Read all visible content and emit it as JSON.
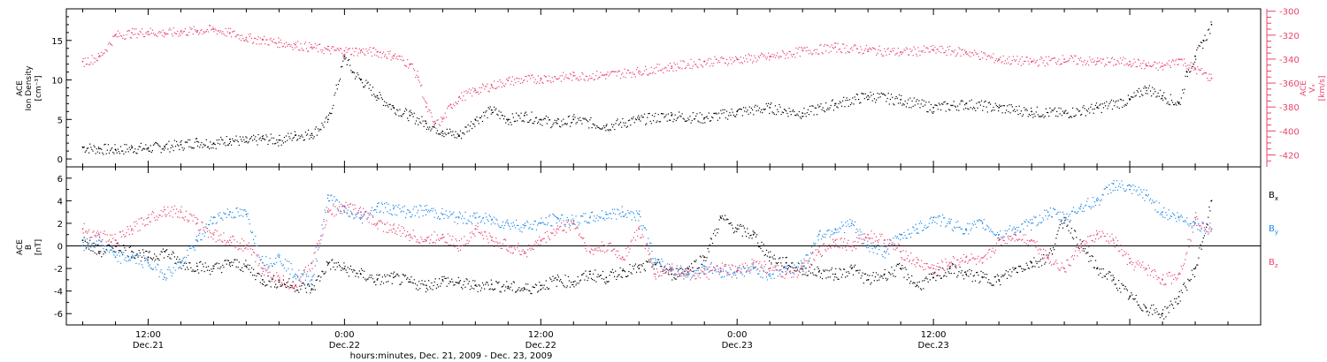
{
  "chart_data": [
    {
      "type": "scatter",
      "panel": "top",
      "ylabel_lines": [
        "ACE",
        "Ion Density",
        "[cm⁻³]"
      ],
      "y2label_lines": [
        "ACE",
        "Vₓ",
        "[km/s]"
      ],
      "xlim": [
        7,
        80
      ],
      "ylim": [
        -1,
        19
      ],
      "y2lim": [
        -430,
        -298
      ],
      "yticks": [
        0,
        5,
        10,
        15
      ],
      "y2ticks": [
        -300,
        -320,
        -340,
        -360,
        -380,
        -400,
        -420
      ],
      "colors": {
        "density": "#000000",
        "velocity": "#e8456e"
      },
      "series": [
        {
          "name": "",
          "axis": "left",
          "color": "#000000",
          "x": [
            8,
            9,
            10,
            11,
            12,
            13,
            14,
            15,
            16,
            17,
            18,
            19,
            20,
            21,
            22,
            23,
            24,
            24.5,
            25,
            26,
            27,
            28,
            29,
            30,
            31,
            32,
            33,
            34,
            35,
            36,
            37,
            38,
            40,
            42,
            44,
            46,
            48,
            50,
            52,
            54,
            56,
            58,
            60,
            62,
            64,
            66,
            68,
            70,
            72,
            73,
            74,
            75,
            75.5,
            76,
            76.5,
            77
          ],
          "y": [
            1.5,
            1.3,
            1.2,
            1.4,
            1.4,
            1.6,
            1.8,
            2.2,
            2.0,
            2.5,
            2.2,
            2.6,
            2.4,
            3.0,
            3.2,
            5.0,
            13.0,
            11.0,
            10.0,
            8.0,
            6.5,
            5.5,
            4.5,
            3.5,
            3.0,
            5.0,
            6.2,
            5.0,
            5.5,
            5.0,
            4.5,
            5.0,
            4.2,
            5.0,
            5.5,
            5.2,
            6.0,
            6.5,
            5.8,
            7.0,
            8.0,
            7.5,
            6.5,
            7.0,
            6.5,
            6.0,
            5.8,
            6.5,
            7.5,
            9.0,
            8.0,
            7.0,
            11.0,
            13.0,
            15.0,
            17.0
          ]
        },
        {
          "name": "",
          "axis": "right",
          "color": "#e8456e",
          "x": [
            8,
            9,
            10,
            11,
            12,
            13,
            14,
            15,
            16,
            17,
            18,
            19,
            20,
            21,
            22,
            23,
            24,
            25,
            26,
            27,
            28,
            28.5,
            29,
            29.5,
            30,
            30.5,
            31,
            32,
            33,
            34,
            36,
            38,
            40,
            42,
            44,
            46,
            48,
            50,
            52,
            54,
            56,
            58,
            60,
            62,
            64,
            66,
            68,
            70,
            72,
            73,
            74,
            75,
            76,
            77
          ],
          "y": [
            -342,
            -338,
            -320,
            -318,
            -317,
            -318,
            -317,
            -316,
            -315,
            -318,
            -322,
            -324,
            -326,
            -328,
            -330,
            -332,
            -333,
            -333,
            -334,
            -337,
            -344,
            -355,
            -380,
            -395,
            -390,
            -378,
            -372,
            -366,
            -362,
            -358,
            -356,
            -354,
            -353,
            -350,
            -346,
            -342,
            -340,
            -338,
            -333,
            -330,
            -332,
            -334,
            -332,
            -334,
            -340,
            -342,
            -340,
            -342,
            -342,
            -345,
            -346,
            -340,
            -348,
            -356
          ]
        }
      ]
    },
    {
      "type": "scatter",
      "panel": "bottom",
      "ylabel_lines": [
        "ACE",
        "B",
        "[nT]"
      ],
      "xlim": [
        7,
        80
      ],
      "ylim": [
        -7,
        7
      ],
      "yticks": [
        -6,
        -4,
        -2,
        0,
        2,
        4,
        6
      ],
      "xticks": [
        {
          "x": 12,
          "line1": "12:00",
          "line2": "Dec.21"
        },
        {
          "x": 24,
          "line1": "0:00",
          "line2": "Dec.22"
        },
        {
          "x": 36,
          "line1": "12:00",
          "line2": "Dec.22"
        },
        {
          "x": 48,
          "line1": "0:00",
          "line2": "Dec.23"
        },
        {
          "x": 60,
          "line1": "12:00",
          "line2": "Dec.23"
        }
      ],
      "xlabel": "hours:minutes, Dec. 21, 2009 - Dec. 23, 2009",
      "legend": [
        {
          "base": "B",
          "sub": "x",
          "color": "#000000"
        },
        {
          "base": "B",
          "sub": "y",
          "color": "#1e88e5"
        },
        {
          "base": "B",
          "sub": "z",
          "color": "#e8456e"
        }
      ],
      "series": [
        {
          "name": "Bx",
          "color": "#000000",
          "x": [
            8,
            9,
            10,
            11,
            12,
            13,
            14,
            15,
            16,
            17,
            18,
            19,
            20,
            21,
            22,
            23,
            24,
            25,
            26,
            27,
            28,
            29,
            30,
            31,
            32,
            33,
            34,
            35,
            36,
            37,
            38,
            39,
            40,
            41,
            42,
            43,
            44,
            45,
            46,
            47,
            48,
            49,
            50,
            51,
            52,
            53,
            54,
            55,
            56,
            57,
            58,
            59,
            60,
            61,
            62,
            63,
            64,
            65,
            66,
            67,
            68,
            69,
            70,
            71,
            72,
            73,
            74,
            75,
            76,
            77
          ],
          "y": [
            0.5,
            -0.5,
            0.0,
            -0.5,
            -1.0,
            -0.5,
            -1.5,
            -1.8,
            -2.0,
            -1.5,
            -1.8,
            -3.0,
            -3.2,
            -3.5,
            -3.8,
            -1.5,
            -2.0,
            -2.5,
            -3.0,
            -2.8,
            -3.2,
            -3.5,
            -3.0,
            -3.3,
            -3.5,
            -3.4,
            -3.6,
            -3.8,
            -3.5,
            -3.0,
            -3.2,
            -2.5,
            -2.8,
            -2.2,
            -2.0,
            -1.5,
            -2.5,
            -2.0,
            -1.0,
            2.5,
            1.5,
            1.0,
            -1.0,
            -1.5,
            -2.0,
            -2.3,
            -2.5,
            -2.0,
            -3.0,
            -2.5,
            -2.0,
            -3.5,
            -2.8,
            -2.0,
            -2.5,
            -2.8,
            -3.0,
            -2.0,
            -1.5,
            -1.0,
            2.5,
            0.0,
            -2.0,
            -3.0,
            -4.5,
            -5.5,
            -6.0,
            -4.5,
            -2.0,
            4.0
          ]
        },
        {
          "name": "By",
          "color": "#1e88e5",
          "x": [
            8,
            9,
            10,
            11,
            12,
            13,
            14,
            15,
            16,
            17,
            18,
            19,
            20,
            21,
            22,
            23,
            24,
            25,
            26,
            27,
            28,
            29,
            30,
            31,
            32,
            33,
            34,
            35,
            36,
            37,
            38,
            39,
            40,
            41,
            42,
            43,
            44,
            45,
            46,
            47,
            48,
            49,
            50,
            51,
            52,
            53,
            54,
            55,
            56,
            57,
            58,
            59,
            60,
            61,
            62,
            63,
            64,
            65,
            66,
            67,
            68,
            69,
            70,
            71,
            72,
            73,
            74,
            75,
            76,
            77
          ],
          "y": [
            0.0,
            0.5,
            -1.0,
            -1.0,
            -1.5,
            -2.5,
            -1.5,
            0.5,
            2.5,
            3.0,
            2.8,
            -1.5,
            -1.0,
            -2.5,
            -3.0,
            4.5,
            3.0,
            2.5,
            3.5,
            3.3,
            3.0,
            3.2,
            2.8,
            2.5,
            2.5,
            2.3,
            2.0,
            1.8,
            2.0,
            2.5,
            2.2,
            2.5,
            2.8,
            3.0,
            2.8,
            -1.5,
            -2.0,
            -2.5,
            -1.8,
            -2.2,
            -2.3,
            -2.0,
            -2.5,
            -2.0,
            -1.8,
            1.0,
            1.5,
            2.0,
            0.0,
            -0.5,
            1.0,
            1.5,
            2.5,
            2.0,
            1.5,
            2.0,
            1.0,
            1.5,
            2.0,
            3.0,
            2.5,
            3.5,
            4.0,
            5.5,
            5.0,
            4.5,
            3.0,
            2.5,
            2.0,
            1.5
          ]
        },
        {
          "name": "Bz",
          "color": "#e8456e",
          "x": [
            8,
            9,
            10,
            11,
            12,
            13,
            14,
            15,
            16,
            17,
            18,
            19,
            20,
            21,
            22,
            23,
            24,
            25,
            26,
            27,
            28,
            29,
            30,
            31,
            32,
            33,
            34,
            35,
            36,
            37,
            38,
            39,
            40,
            41,
            42,
            43,
            44,
            45,
            46,
            47,
            48,
            49,
            50,
            51,
            52,
            53,
            54,
            55,
            56,
            57,
            58,
            59,
            60,
            61,
            62,
            63,
            64,
            65,
            66,
            67,
            68,
            69,
            70,
            71,
            72,
            73,
            74,
            75,
            76,
            77
          ],
          "y": [
            1.5,
            1.0,
            0.5,
            1.5,
            2.5,
            3.2,
            3.0,
            2.0,
            1.0,
            0.5,
            0.0,
            -2.0,
            -3.0,
            -3.5,
            -1.5,
            3.0,
            3.5,
            3.0,
            2.0,
            1.5,
            1.0,
            0.5,
            1.0,
            0.0,
            1.5,
            0.5,
            0.0,
            -0.5,
            0.5,
            1.5,
            2.0,
            -0.5,
            0.0,
            -1.0,
            1.5,
            -2.5,
            -2.0,
            -2.3,
            -2.5,
            -2.0,
            -2.2,
            -1.5,
            -2.0,
            -2.5,
            -2.0,
            -0.5,
            0.5,
            0.0,
            1.0,
            0.5,
            -0.5,
            -1.5,
            -2.0,
            -1.5,
            -1.0,
            -1.5,
            0.5,
            1.0,
            0.5,
            -1.0,
            -2.0,
            0.0,
            1.0,
            0.5,
            -1.5,
            -2.0,
            -3.0,
            -2.5,
            2.5,
            1.5
          ]
        }
      ]
    }
  ]
}
